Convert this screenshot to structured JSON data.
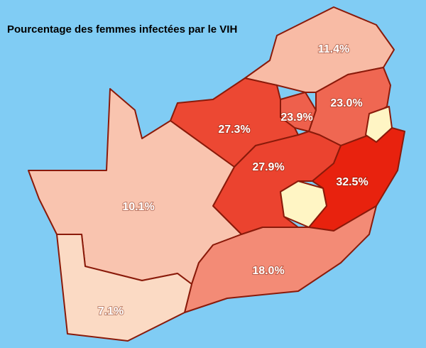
{
  "title": "Pourcentage des femmes infectées par le VIH",
  "regions": {
    "values": [
      11.4,
      23.0,
      23.9,
      27.3,
      27.9,
      32.5,
      10.1,
      18.0,
      7.1
    ],
    "value_labels": [
      "11.4%",
      "23.0%",
      "23.9%",
      "27.3%",
      "27.9%",
      "32.5%",
      "10.1%",
      "18.0%",
      "7.1%"
    ]
  }
}
